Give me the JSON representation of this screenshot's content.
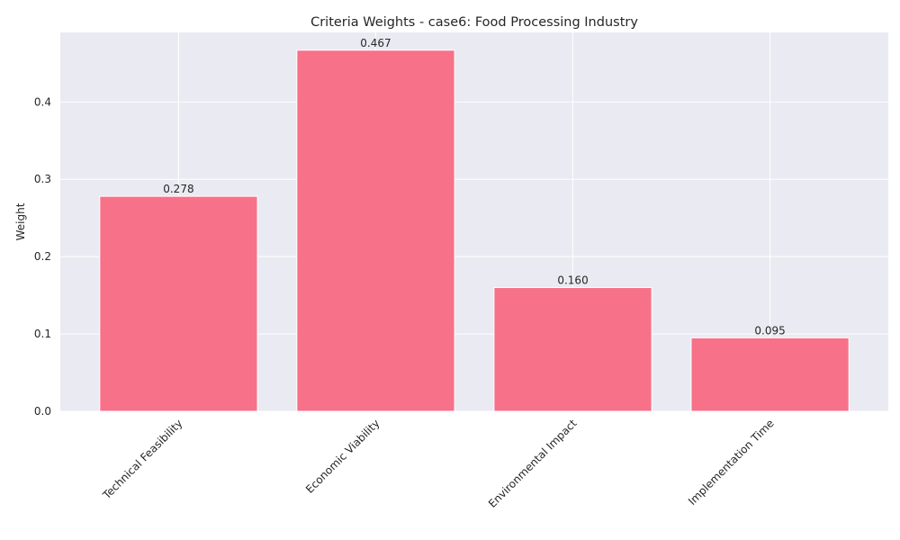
{
  "chart_data": {
    "type": "bar",
    "title": "Criteria Weights - case6: Food Processing Industry",
    "xlabel": "",
    "ylabel": "Weight",
    "categories": [
      "Technical Feasibility",
      "Economic Viability",
      "Environmental Impact",
      "Implementation Time"
    ],
    "values": [
      0.278,
      0.467,
      0.16,
      0.095
    ],
    "value_labels": [
      "0.278",
      "0.467",
      "0.160",
      "0.095"
    ],
    "yticks": [
      0.0,
      0.1,
      0.2,
      0.3,
      0.4
    ],
    "ytick_labels": [
      "0.0",
      "0.1",
      "0.2",
      "0.3",
      "0.4"
    ],
    "ylim": [
      0,
      0.49
    ],
    "grid": true,
    "colors": {
      "bar": "#f77189",
      "plot_background": "#eaeaf2",
      "grid": "#ffffff",
      "text": "#262626"
    }
  }
}
